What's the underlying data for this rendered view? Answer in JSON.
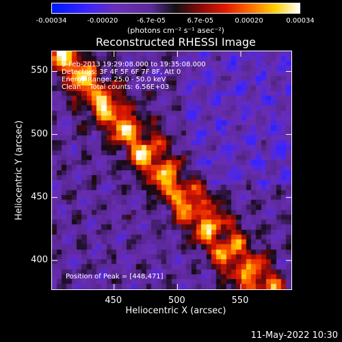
{
  "colorbar": {
    "ticks": [
      {
        "label": "-0.00034",
        "value": -0.00034
      },
      {
        "label": "-0.00020",
        "value": -0.0002
      },
      {
        "label": "-6.7e-05",
        "value": -6.7e-05
      },
      {
        "label": "6.7e-05",
        "value": 6.7e-05
      },
      {
        "label": "0.00020",
        "value": 0.0002
      },
      {
        "label": "0.00034",
        "value": 0.00034
      }
    ],
    "range": [
      -0.00034,
      0.00034
    ],
    "units": "(photons cm⁻² s⁻¹ asec⁻²)"
  },
  "title": "Reconstructed RHESSI Image",
  "overlay": {
    "line1": "9-Feb-2013 19:29:08.000 to 19:35:08.000",
    "line2": "Detectors: 3F 4F 5F 6F 7F 8F, Att 0",
    "line3": "Energy Range: 25.0 - 50.0 keV",
    "line4": "Clean    Total counts: 6.56E+03",
    "peak": "Position of Peak = [448,471]"
  },
  "axes": {
    "xlabel": "Heliocentric X (arcsec)",
    "ylabel": "Heliocentric Y (arcsec)",
    "xrange": [
      401,
      591
    ],
    "yrange": [
      376,
      566
    ],
    "xticks": [
      {
        "label": "450",
        "value": 450
      },
      {
        "label": "500",
        "value": 500
      },
      {
        "label": "550",
        "value": 550
      }
    ],
    "yticks": [
      {
        "label": "400",
        "value": 400
      },
      {
        "label": "450",
        "value": 450
      },
      {
        "label": "500",
        "value": 500
      },
      {
        "label": "550",
        "value": 550
      }
    ]
  },
  "timestamp": "11-May-2022 10:30"
}
